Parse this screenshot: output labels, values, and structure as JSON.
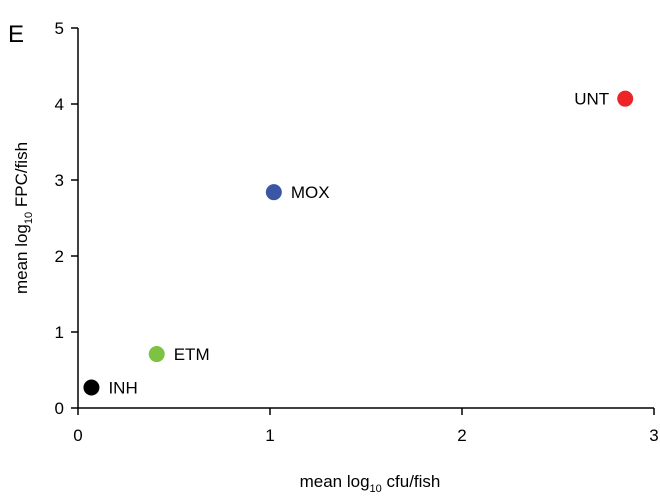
{
  "panel_label": "E",
  "chart_data": {
    "type": "scatter",
    "title": "",
    "xlabel": {
      "pre": "mean log",
      "sub": "10",
      "post": " cfu/fish"
    },
    "ylabel": {
      "pre": "mean log",
      "sub": "10",
      "post": " FPC/fish"
    },
    "xlim": [
      0,
      3
    ],
    "ylim": [
      0,
      5
    ],
    "xticks": [
      "0",
      "1",
      "2",
      "3"
    ],
    "yticks": [
      "0",
      "1",
      "2",
      "3",
      "4",
      "5"
    ],
    "grid": false,
    "points": [
      {
        "label": "INH",
        "x": 0.07,
        "y": 0.27,
        "color": "#000000"
      },
      {
        "label": "ETM",
        "x": 0.41,
        "y": 0.71,
        "color": "#7dc242"
      },
      {
        "label": "MOX",
        "x": 1.02,
        "y": 2.84,
        "color": "#3a56a5"
      },
      {
        "label": "UNT",
        "x": 2.85,
        "y": 4.07,
        "color": "#ec2327"
      }
    ]
  }
}
